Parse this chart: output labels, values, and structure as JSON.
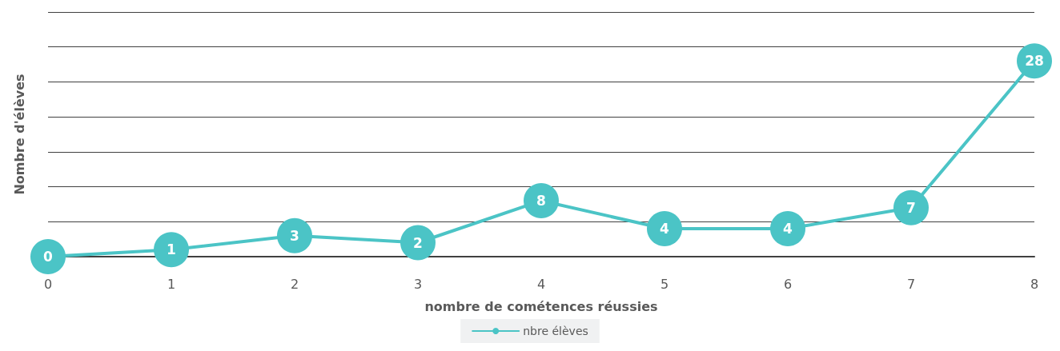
{
  "chart_data": {
    "type": "line",
    "xlabel": "nombre de cométences réussies",
    "ylabel": "Nombre d'élèves",
    "x": [
      0,
      1,
      2,
      3,
      4,
      5,
      6,
      7,
      8
    ],
    "series": [
      {
        "name": "nbre élèves",
        "color": "#4bc4c6",
        "values": [
          0,
          1,
          3,
          2,
          8,
          4,
          4,
          7,
          28
        ]
      }
    ],
    "xlim": [
      0,
      8
    ],
    "xticks": [
      0,
      1,
      2,
      3,
      4,
      5,
      6,
      7,
      8
    ],
    "ylim": [
      0,
      35
    ],
    "yticks": [
      0,
      5,
      10,
      15,
      20,
      25,
      30,
      35
    ],
    "tick_labels": "x",
    "grid": "y",
    "legend": "bottom",
    "marker": "circle",
    "line_style": "solid",
    "data_labels": true
  }
}
